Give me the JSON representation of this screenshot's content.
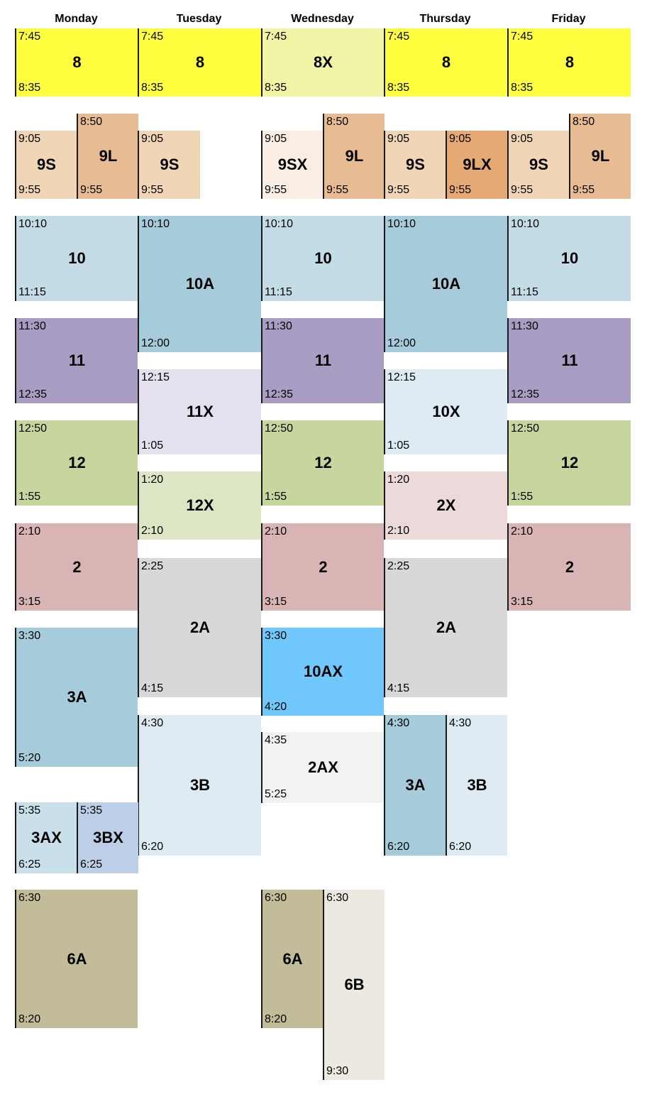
{
  "days": [
    "Monday",
    "Tuesday",
    "Wednesday",
    "Thursday",
    "Friday"
  ],
  "blocks": [
    {
      "label": "8",
      "start": "7:45",
      "end": "8:35",
      "color": "#ffff3f"
    },
    {
      "label": "8",
      "start": "7:45",
      "end": "8:35",
      "color": "#ffff3f"
    },
    {
      "label": "8X",
      "start": "7:45",
      "end": "8:35",
      "color": "#f2f5a6"
    },
    {
      "label": "8",
      "start": "7:45",
      "end": "8:35",
      "color": "#ffff3f"
    },
    {
      "label": "8",
      "start": "7:45",
      "end": "8:35",
      "color": "#ffff3f"
    },
    {
      "label": "9S",
      "start": "9:05",
      "end": "9:55",
      "color": "#f0d5b7"
    },
    {
      "label": "9L",
      "start": "8:50",
      "end": "9:55",
      "color": "#e8bc92"
    },
    {
      "label": "9S",
      "start": "9:05",
      "end": "9:55",
      "color": "#f0d5b7"
    },
    {
      "label": "9SX",
      "start": "9:05",
      "end": "9:55",
      "color": "#faede3"
    },
    {
      "label": "9L",
      "start": "8:50",
      "end": "9:55",
      "color": "#e8bc92"
    },
    {
      "label": "9S",
      "start": "9:05",
      "end": "9:55",
      "color": "#f0d5b7"
    },
    {
      "label": "9LX",
      "start": "9:05",
      "end": "9:55",
      "color": "#e5aa74"
    },
    {
      "label": "9S",
      "start": "9:05",
      "end": "9:55",
      "color": "#f0d5b7"
    },
    {
      "label": "9L",
      "start": "8:50",
      "end": "9:55",
      "color": "#e8bc92"
    },
    {
      "label": "10",
      "start": "10:10",
      "end": "11:15",
      "color": "#c4dce6"
    },
    {
      "label": "10A",
      "start": "10:10",
      "end": "12:00",
      "color": "#a6ccdb"
    },
    {
      "label": "10",
      "start": "10:10",
      "end": "11:15",
      "color": "#c4dce6"
    },
    {
      "label": "10A",
      "start": "10:10",
      "end": "12:00",
      "color": "#a6ccdb"
    },
    {
      "label": "10",
      "start": "10:10",
      "end": "11:15",
      "color": "#c4dce6"
    },
    {
      "label": "11",
      "start": "11:30",
      "end": "12:35",
      "color": "#a99dc3"
    },
    {
      "label": "11",
      "start": "11:30",
      "end": "12:35",
      "color": "#a99dc3"
    },
    {
      "label": "11",
      "start": "11:30",
      "end": "12:35",
      "color": "#a99dc3"
    },
    {
      "label": "11X",
      "start": "12:15",
      "end": "1:05",
      "color": "#e5e0ee"
    },
    {
      "label": "10X",
      "start": "12:15",
      "end": "1:05",
      "color": "#dfebf2"
    },
    {
      "label": "12",
      "start": "12:50",
      "end": "1:55",
      "color": "#c7d69f"
    },
    {
      "label": "12",
      "start": "12:50",
      "end": "1:55",
      "color": "#c7d69f"
    },
    {
      "label": "12",
      "start": "12:50",
      "end": "1:55",
      "color": "#c7d69f"
    },
    {
      "label": "12X",
      "start": "1:20",
      "end": "2:10",
      "color": "#dce6c4"
    },
    {
      "label": "2X",
      "start": "1:20",
      "end": "2:10",
      "color": "#ecdadb"
    },
    {
      "label": "2",
      "start": "2:10",
      "end": "3:15",
      "color": "#d9b4b4"
    },
    {
      "label": "2",
      "start": "2:10",
      "end": "3:15",
      "color": "#d9b4b4"
    },
    {
      "label": "2",
      "start": "2:10",
      "end": "3:15",
      "color": "#d9b4b4"
    },
    {
      "label": "2A",
      "start": "2:25",
      "end": "4:15",
      "color": "#d8d8d8"
    },
    {
      "label": "2A",
      "start": "2:25",
      "end": "4:15",
      "color": "#d8d8d8"
    },
    {
      "label": "3A",
      "start": "3:30",
      "end": "5:20",
      "color": "#a6ccdb"
    },
    {
      "label": "10AX",
      "start": "3:30",
      "end": "4:20",
      "color": "#6fc7fb"
    },
    {
      "label": "3B",
      "start": "4:30",
      "end": "6:20",
      "color": "#dfebf2"
    },
    {
      "label": "2AX",
      "start": "4:35",
      "end": "5:25",
      "color": "#f2f2f2"
    },
    {
      "label": "3A",
      "start": "4:30",
      "end": "6:20",
      "color": "#a6ccdb"
    },
    {
      "label": "3B",
      "start": "4:30",
      "end": "6:20",
      "color": "#dfebf2"
    },
    {
      "label": "3AX",
      "start": "5:35",
      "end": "6:25",
      "color": "#c9e0ea"
    },
    {
      "label": "3BX",
      "start": "5:35",
      "end": "6:25",
      "color": "#bccfe6"
    },
    {
      "label": "6A",
      "start": "6:30",
      "end": "8:20",
      "color": "#c2bd98"
    },
    {
      "label": "6A",
      "start": "6:30",
      "end": "8:20",
      "color": "#c2bd98"
    },
    {
      "label": "6B",
      "start": "6:30",
      "end": "9:30",
      "color": "#ebe9e0"
    }
  ]
}
